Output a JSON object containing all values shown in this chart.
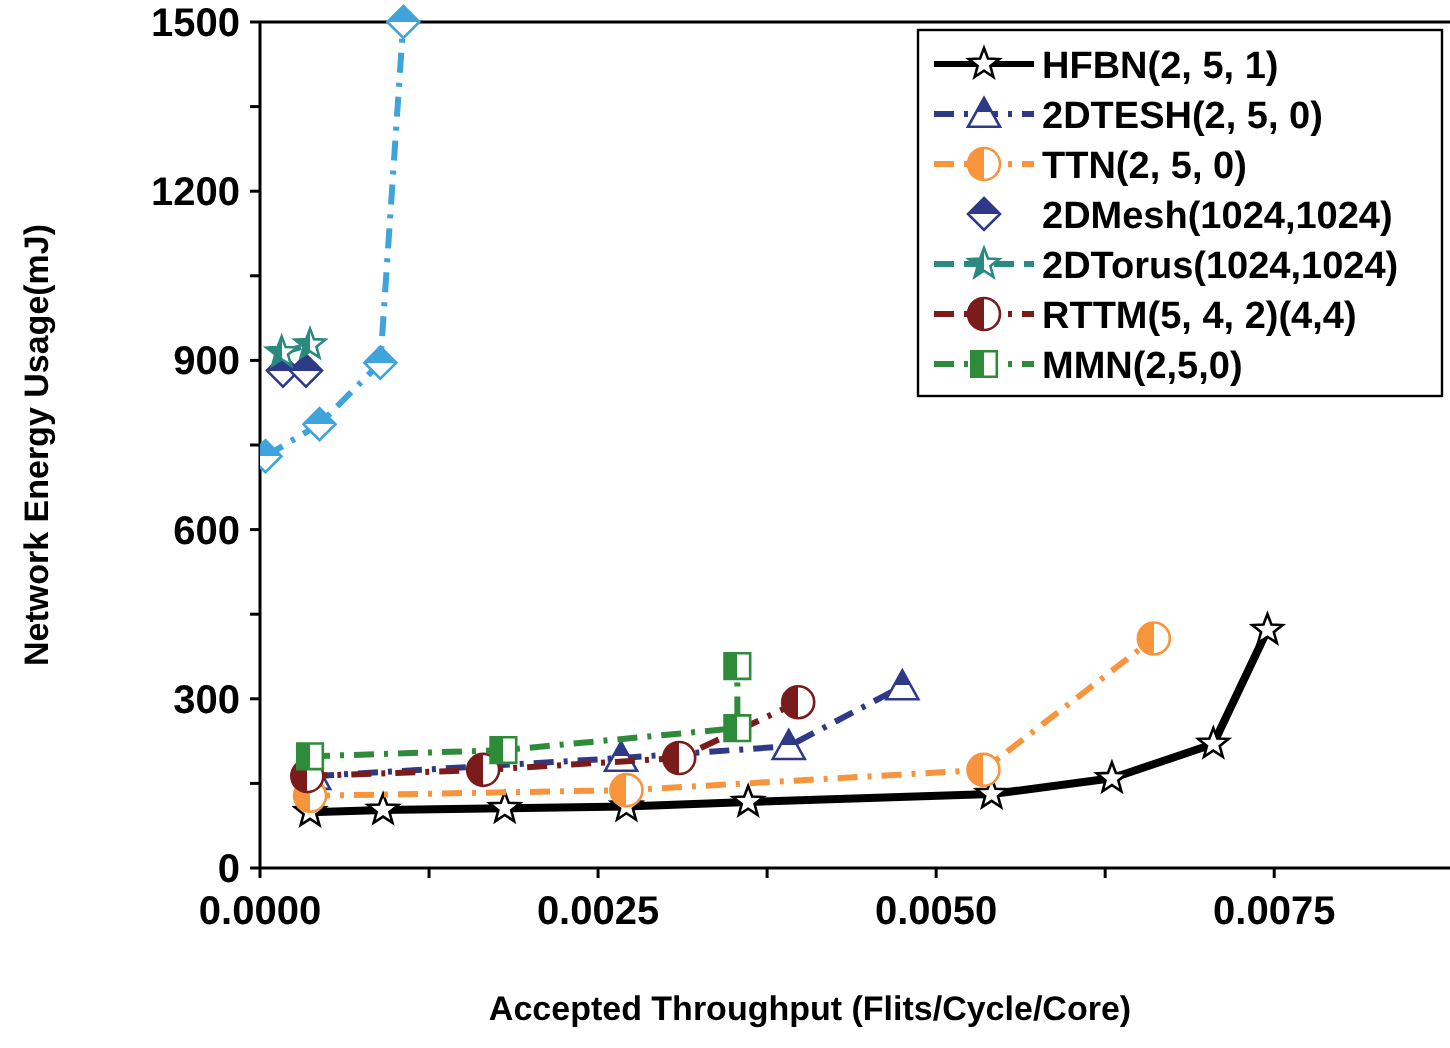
{
  "chart_data": {
    "type": "line",
    "xlabel": "Accepted Throughput (Flits/Cycle/Core)",
    "ylabel": "Network Energy Usage(mJ)",
    "xlim": [
      0,
      0.0088
    ],
    "ylim": [
      0,
      1500
    ],
    "xticks": [
      {
        "value": 0,
        "label": "0.0000"
      },
      {
        "value": 0.00125,
        "label": null
      },
      {
        "value": 0.0025,
        "label": "0.0025"
      },
      {
        "value": 0.00375,
        "label": null
      },
      {
        "value": 0.005,
        "label": "0.0050"
      },
      {
        "value": 0.00625,
        "label": null
      },
      {
        "value": 0.0075,
        "label": "0.0075"
      }
    ],
    "yticks": [
      0,
      {
        "value": 150,
        "label": null
      },
      300,
      {
        "value": 450,
        "label": null
      },
      600,
      {
        "value": 750,
        "label": null
      },
      900,
      {
        "value": 1050,
        "label": null
      },
      1200,
      {
        "value": 1350,
        "label": null
      },
      1500
    ],
    "grid": false,
    "legend": "top right",
    "series": [
      {
        "name": "HFBN(2, 5, 1)",
        "color": "#000000",
        "marker": "star",
        "line_style": "solid",
        "x": [
          0.00037,
          0.00091,
          0.00181,
          0.00271,
          0.00361,
          0.00541,
          0.0063,
          0.00705,
          0.00745
        ],
        "values": [
          99,
          103,
          106,
          109,
          117,
          131,
          159,
          220,
          422
        ]
      },
      {
        "name": "2DTESH(2, 5, 0)",
        "color": "#2e3a87",
        "marker": "triangle",
        "line_style": "dashdot",
        "x": [
          0.0004,
          0.00267,
          0.00391,
          0.00475
        ],
        "values": [
          163,
          195,
          216,
          322
        ]
      },
      {
        "name": "TTN(2, 5, 0)",
        "color": "#f7943c",
        "marker": "circle",
        "line_style": "dashdot",
        "x": [
          0.00037,
          0.00271,
          0.00535,
          0.00661
        ],
        "values": [
          128,
          138,
          174,
          407
        ]
      },
      {
        "name": "2DMesh(1024,1024)",
        "type": "scatter",
        "color": "#2e3a87",
        "marker": "diamond",
        "x": [
          0.00017,
          0.00034
        ],
        "values": [
          882,
          882
        ]
      },
      {
        "name": "2DTorus(1024,1024)",
        "color": "#2a8a80",
        "marker": "star",
        "line_style": "dashed",
        "x": [
          0.00016,
          0.00037
        ],
        "values": [
          914,
          928
        ]
      },
      {
        "name": "RTTM(5, 4, 2)(4,4)",
        "color": "#7b1c1c",
        "marker": "circle",
        "line_style": "dashdot",
        "x": [
          0.00035,
          0.00165,
          0.0031,
          0.00398
        ],
        "values": [
          163,
          174,
          195,
          294
        ]
      },
      {
        "name": "MMN(2,5,0)",
        "color": "#2e8b3a",
        "marker": "square",
        "line_style": "dashdot",
        "x": [
          0.00037,
          0.0018,
          0.00353,
          0.00353
        ],
        "values": [
          198,
          209,
          248,
          358
        ]
      },
      {
        "color": "#3fa3dc",
        "marker": "diamond",
        "line_style": "dashdot",
        "x": [
          4e-05,
          0.00044,
          0.00089,
          0.00106
        ],
        "values": [
          730,
          787,
          896,
          1500
        ]
      }
    ]
  }
}
